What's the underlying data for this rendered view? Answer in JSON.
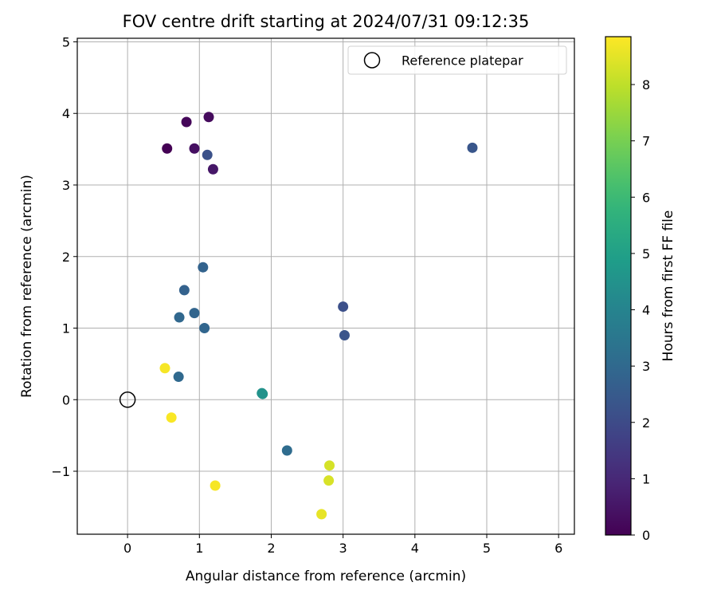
{
  "chart_data": {
    "type": "scatter",
    "title": "FOV centre drift starting at 2024/07/31 09:12:35",
    "xlabel": "Angular distance from reference (arcmin)",
    "ylabel": "Rotation from reference (arcmin)",
    "xlim": [
      -0.7,
      6.22
    ],
    "ylim": [
      -1.88,
      5.05
    ],
    "xticks": [
      0,
      1,
      2,
      3,
      4,
      5,
      6
    ],
    "yticks": [
      -1,
      0,
      1,
      2,
      3,
      4,
      5
    ],
    "grid": true,
    "colormap": "viridis",
    "colorbar": {
      "label": "Hours from first FF file",
      "range": [
        0,
        8.85
      ],
      "ticks": [
        0,
        1,
        2,
        3,
        4,
        5,
        6,
        7,
        8
      ]
    },
    "legend": {
      "placement": "top-right",
      "entries": [
        "Reference platepar"
      ]
    },
    "reference_point": {
      "x": 0,
      "y": 0,
      "marker": "hollow-circle"
    },
    "points": [
      {
        "x": 0.55,
        "y": 3.51,
        "hours": 0.0
      },
      {
        "x": 0.82,
        "y": 3.88,
        "hours": 0.15
      },
      {
        "x": 1.13,
        "y": 3.95,
        "hours": 0.25
      },
      {
        "x": 0.93,
        "y": 3.51,
        "hours": 0.35
      },
      {
        "x": 1.19,
        "y": 3.22,
        "hours": 0.55
      },
      {
        "x": 1.11,
        "y": 3.42,
        "hours": 2.2
      },
      {
        "x": 4.8,
        "y": 3.52,
        "hours": 2.35
      },
      {
        "x": 3.0,
        "y": 1.3,
        "hours": 2.15
      },
      {
        "x": 3.02,
        "y": 0.9,
        "hours": 2.3
      },
      {
        "x": 1.05,
        "y": 1.85,
        "hours": 2.8
      },
      {
        "x": 0.79,
        "y": 1.53,
        "hours": 2.75
      },
      {
        "x": 0.93,
        "y": 1.21,
        "hours": 2.85
      },
      {
        "x": 0.72,
        "y": 1.15,
        "hours": 2.95
      },
      {
        "x": 1.07,
        "y": 1.0,
        "hours": 2.9
      },
      {
        "x": 0.71,
        "y": 0.32,
        "hours": 3.0
      },
      {
        "x": 2.22,
        "y": -0.71,
        "hours": 3.1
      },
      {
        "x": 1.88,
        "y": 0.08,
        "hours": 4.6
      },
      {
        "x": 1.87,
        "y": 0.09,
        "hours": 4.5
      },
      {
        "x": 0.52,
        "y": 0.44,
        "hours": 8.75
      },
      {
        "x": 0.61,
        "y": -0.25,
        "hours": 8.8
      },
      {
        "x": 1.22,
        "y": -1.2,
        "hours": 8.75
      },
      {
        "x": 2.81,
        "y": -0.92,
        "hours": 8.3
      },
      {
        "x": 2.8,
        "y": -1.13,
        "hours": 8.35
      },
      {
        "x": 2.7,
        "y": -1.6,
        "hours": 8.55
      }
    ]
  }
}
